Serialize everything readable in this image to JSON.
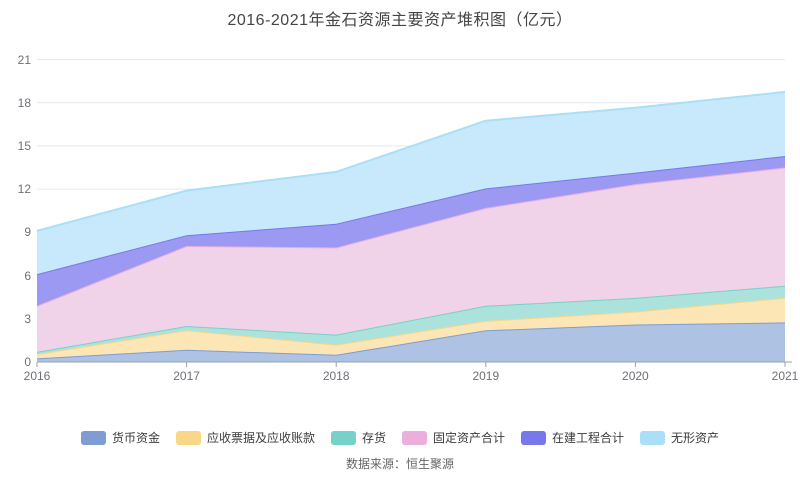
{
  "chart_data": {
    "type": "area",
    "stacked": true,
    "title": "2016-2021年金石资源主要资产堆积图（亿元）",
    "source": "数据来源：恒生聚源",
    "xlabel": "",
    "ylabel": "",
    "categories": [
      "2016",
      "2017",
      "2018",
      "2019",
      "2020",
      "2021"
    ],
    "y_ticks": [
      0,
      3,
      6,
      9,
      12,
      15,
      18,
      21
    ],
    "ylim": [
      0,
      21
    ],
    "grid": true,
    "legend_position": "bottom",
    "series": [
      {
        "id": "cash",
        "name": "货币资金",
        "line_color": "#7D9DD3",
        "fill_color": "#AEC2E4",
        "values": [
          0.25,
          0.85,
          0.5,
          2.2,
          2.6,
          2.75
        ]
      },
      {
        "id": "receivables",
        "name": "应收票据及应收账款",
        "line_color": "#FAD689",
        "fill_color": "#FCE6B6",
        "values": [
          0.3,
          1.35,
          0.7,
          0.65,
          0.9,
          1.7
        ]
      },
      {
        "id": "inventory",
        "name": "存货",
        "line_color": "#77D1CB",
        "fill_color": "#ABE2DB",
        "values": [
          0.15,
          0.3,
          0.7,
          1.05,
          0.95,
          0.85
        ]
      },
      {
        "id": "fixed-assets",
        "name": "固定资产合计",
        "line_color": "#ECAEDB",
        "fill_color": "#F0D3E8",
        "values": [
          3.2,
          5.55,
          6.05,
          6.8,
          7.9,
          8.2
        ]
      },
      {
        "id": "construction",
        "name": "在建工程合计",
        "line_color": "#7678EB",
        "fill_color": "#9B99F2",
        "values": [
          2.2,
          0.75,
          1.65,
          1.35,
          0.8,
          0.8
        ]
      },
      {
        "id": "intangible",
        "name": "无形资产",
        "line_color": "#A9DFF7",
        "fill_color": "#C8E9FB",
        "values": [
          3.0,
          3.1,
          3.6,
          4.7,
          4.5,
          4.45
        ]
      }
    ],
    "axis_colors": {
      "axis_line": "#9aa0a6",
      "grid_line": "#E6E7F1",
      "tick_label": "#6E7079"
    }
  }
}
